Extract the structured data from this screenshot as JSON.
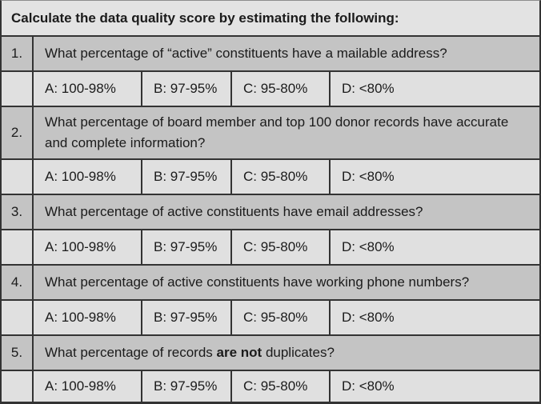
{
  "colors": {
    "title_bg": "#e3e3e3",
    "question_bg": "#c4c4c4",
    "answer_bg": "#e0e0e0",
    "border": "#333333",
    "text": "#1b1b1b"
  },
  "title": "Calculate the data quality score by estimating the following:",
  "items": [
    {
      "number": "1.",
      "q_pre": "What percentage of “active” constituents have a mailable address?",
      "q_bold": "",
      "q_post": "",
      "options": [
        "A: 100-98%",
        "B: 97-95%",
        "C: 95-80%",
        "D: <80%"
      ]
    },
    {
      "number": "2.",
      "q_pre": "What percentage of board member and top 100 donor records have accurate and complete information?",
      "q_bold": "",
      "q_post": "",
      "options": [
        "A: 100-98%",
        "B: 97-95%",
        "C: 95-80%",
        "D: <80%"
      ]
    },
    {
      "number": "3.",
      "q_pre": "What percentage of active constituents have email addresses?",
      "q_bold": "",
      "q_post": "",
      "options": [
        "A: 100-98%",
        "B: 97-95%",
        "C: 95-80%",
        "D: <80%"
      ]
    },
    {
      "number": "4.",
      "q_pre": "What percentage of active constituents have working phone numbers?",
      "q_bold": "",
      "q_post": "",
      "options": [
        "A: 100-98%",
        "B: 97-95%",
        "C: 95-80%",
        "D: <80%"
      ]
    },
    {
      "number": "5.",
      "q_pre": "What percentage of records ",
      "q_bold": "are not",
      "q_post": " duplicates?",
      "options": [
        "A: 100-98%",
        "B: 97-95%",
        "C: 95-80%",
        "D: <80%"
      ]
    }
  ]
}
